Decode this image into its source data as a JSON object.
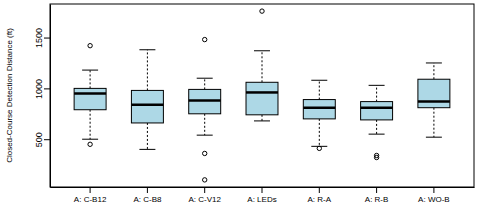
{
  "chart_data": {
    "type": "box",
    "y_label": "Closed-Course Detection Distance (ft)",
    "categories": [
      "A: C-B12",
      "A: C-B8",
      "A: C-V12",
      "A: LEDs",
      "A: R-A",
      "A: R-B",
      "A: WO-B"
    ],
    "boxes": [
      {
        "min": 500,
        "q1": 790,
        "median": 950,
        "q3": 1000,
        "max": 1180,
        "outliers": [
          1420,
          450
        ]
      },
      {
        "min": 400,
        "q1": 660,
        "median": 840,
        "q3": 980,
        "max": 1380,
        "outliers": []
      },
      {
        "min": 540,
        "q1": 750,
        "median": 880,
        "q3": 990,
        "max": 1100,
        "outliers": [
          1480,
          360,
          100
        ]
      },
      {
        "min": 680,
        "q1": 740,
        "median": 960,
        "q3": 1060,
        "max": 1370,
        "outliers": [
          1760
        ]
      },
      {
        "min": 430,
        "q1": 700,
        "median": 810,
        "q3": 890,
        "max": 1080,
        "outliers": [
          410
        ]
      },
      {
        "min": 550,
        "q1": 690,
        "median": 810,
        "q3": 870,
        "max": 1030,
        "outliers": [
          340,
          320
        ]
      },
      {
        "min": 520,
        "q1": 810,
        "median": 870,
        "q3": 1090,
        "max": 1250,
        "outliers": []
      }
    ],
    "color": "#add8e6",
    "ylim": [
      30,
      1830
    ],
    "yticks": [
      500,
      1000,
      1500
    ]
  }
}
